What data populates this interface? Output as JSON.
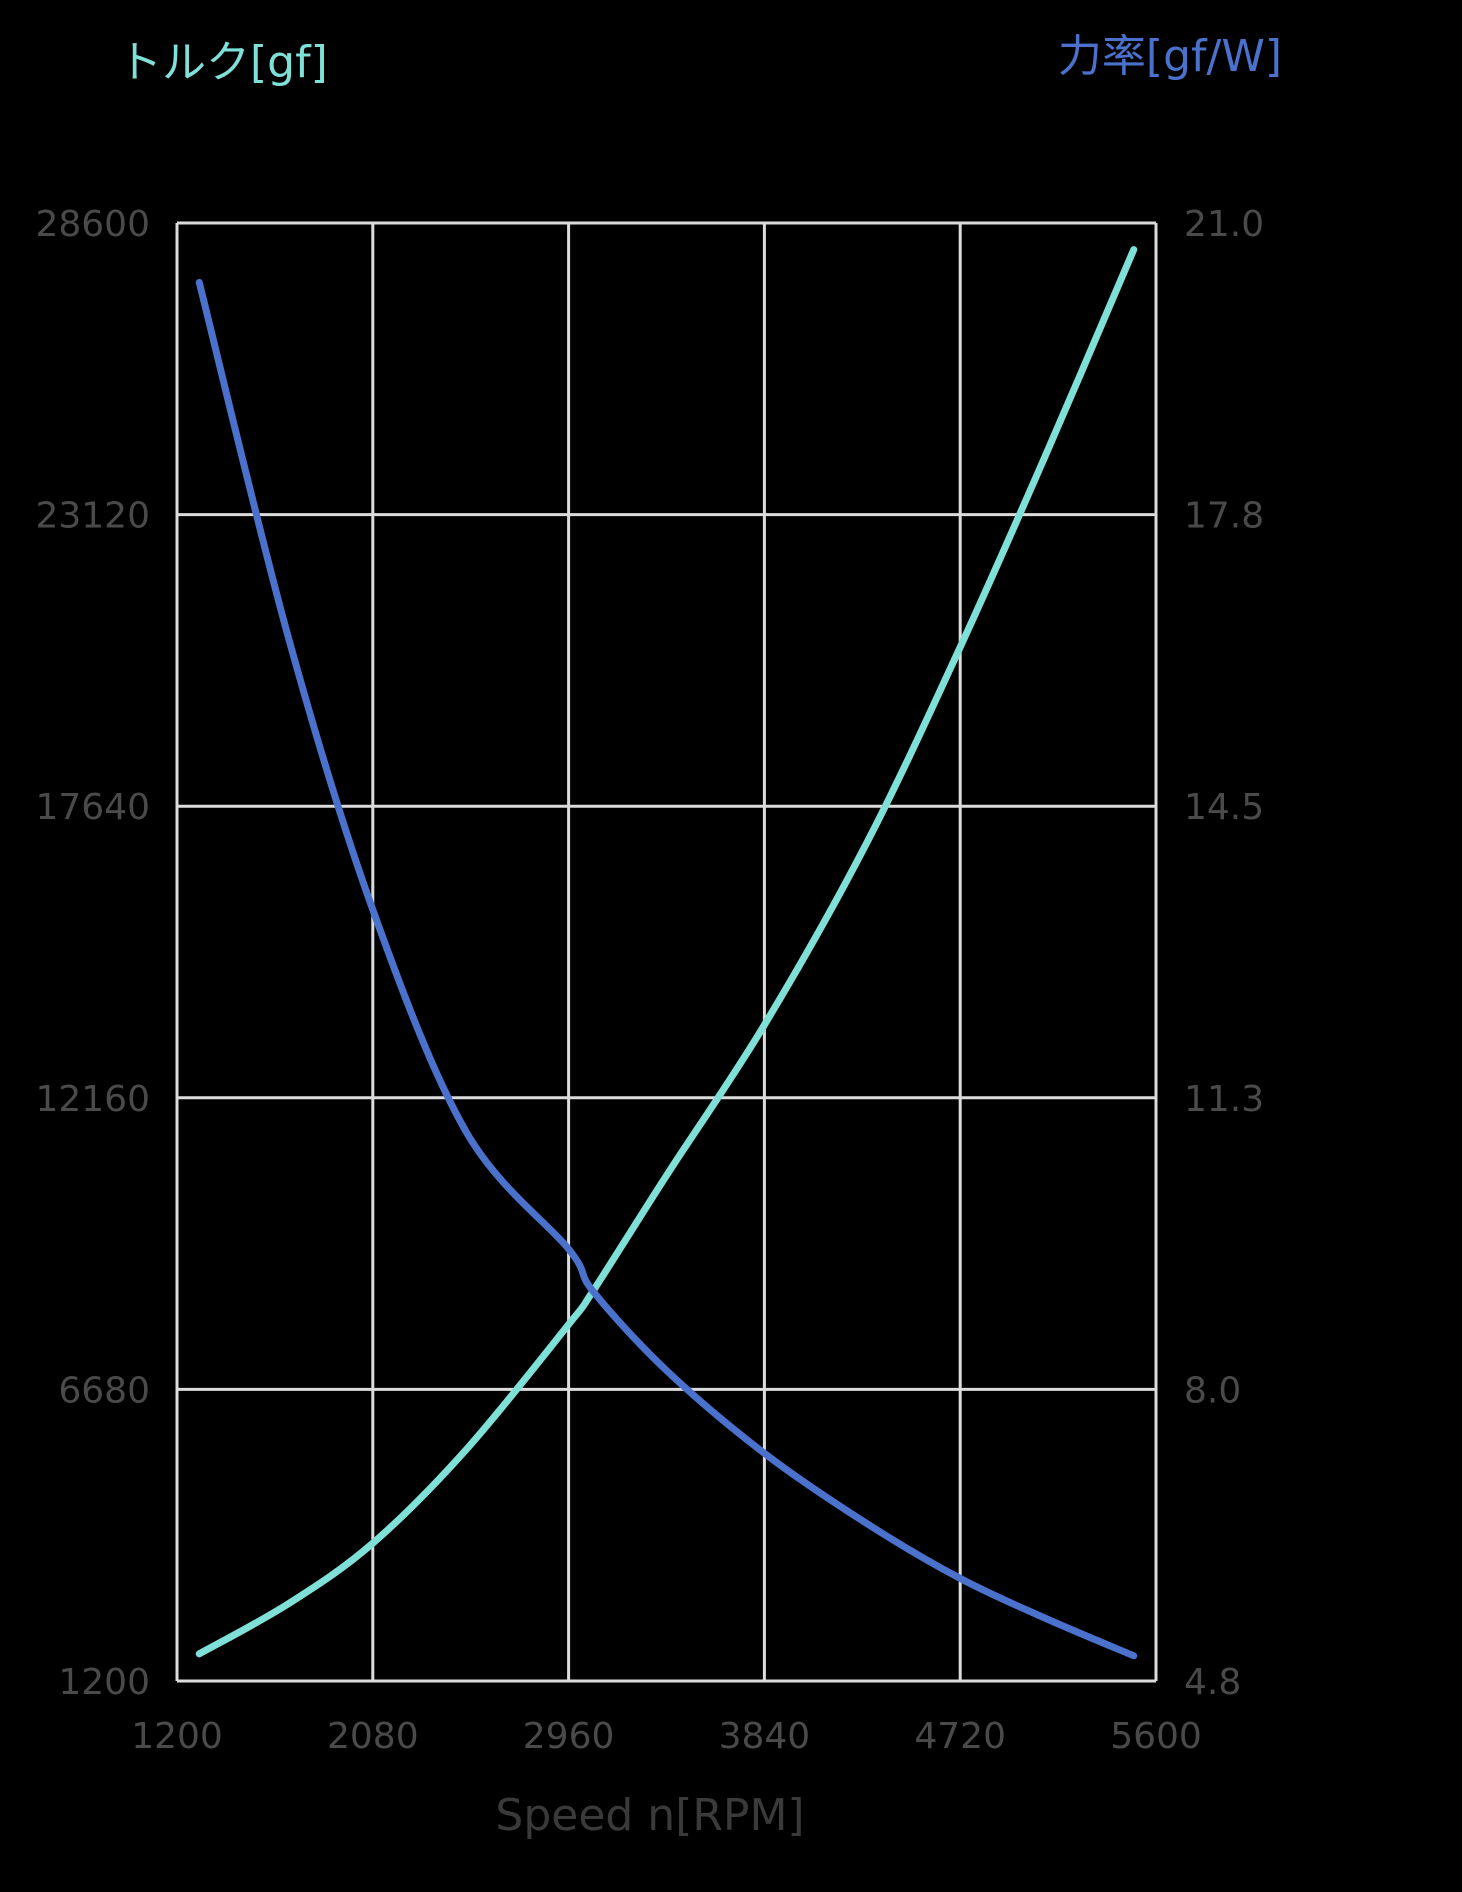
{
  "titles": {
    "left_axis_title": "トルク[gf]",
    "right_axis_title": "力率[gf/W]",
    "x_axis_title": "Speed n[RPM]"
  },
  "colors": {
    "background": "#000000",
    "grid": "#dcdcdc",
    "tick_text": "#4a4a4a",
    "torque": "#7fe0d8",
    "efficiency": "#4a72cc"
  },
  "chart_data": {
    "type": "line",
    "title": "",
    "xlabel": "Speed n[RPM]",
    "ylabel": "トルク[gf]",
    "y2label": "力率[gf/W]",
    "xlim": [
      1200,
      5600
    ],
    "ylim": [
      1200,
      28600
    ],
    "y2lim": [
      4.8,
      21.0
    ],
    "x_ticks": [
      "1200",
      "2080",
      "2960",
      "3840",
      "4720",
      "5600"
    ],
    "y_ticks": [
      "28600",
      "23120",
      "17640",
      "12160",
      "6680",
      "1200"
    ],
    "y2_ticks": [
      "21.0",
      "17.8",
      "14.5",
      "11.3",
      "8.0",
      "4.8"
    ],
    "grid": true,
    "legend": "none (axis titles colored by series)",
    "series": [
      {
        "name": "トルク[gf]",
        "axis": "left",
        "color": "#7fe0d8",
        "x": [
          1300,
          1700,
          2080,
          2500,
          2960,
          3070,
          3400,
          3840,
          4300,
          4720,
          5100,
          5500
        ],
        "values": [
          1710,
          2650,
          3790,
          5550,
          7900,
          8530,
          10700,
          13530,
          16950,
          20630,
          24200,
          28100
        ]
      },
      {
        "name": "力率[gf/W]",
        "axis": "right",
        "color": "#4a72cc",
        "x": [
          1300,
          1700,
          2080,
          2500,
          2960,
          3070,
          3400,
          3840,
          4300,
          4720,
          5100,
          5500
        ],
        "values": [
          20.34,
          16.4,
          13.37,
          10.9,
          9.6,
          9.13,
          8.25,
          7.33,
          6.55,
          5.94,
          5.5,
          5.08
        ]
      }
    ]
  }
}
